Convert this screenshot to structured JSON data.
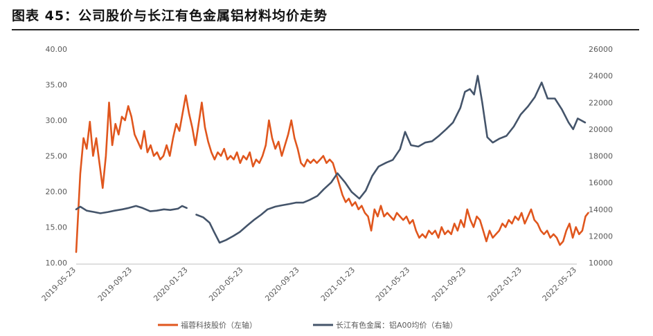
{
  "title": "图表 45：公司股价与长江有色金属铝材料均价走势",
  "chart_data": {
    "type": "line",
    "x_ticks": [
      "2019-05-23",
      "2019-09-23",
      "2020-01-23",
      "2020-05-23",
      "2020-09-23",
      "2021-01-23",
      "2021-05-23",
      "2021-09-23",
      "2022-01-23",
      "2022-05-23"
    ],
    "y_left": {
      "ticks": [
        "10.00",
        "15.00",
        "20.00",
        "25.00",
        "30.00",
        "35.00",
        "40.00"
      ],
      "lim": [
        10,
        40
      ]
    },
    "y_right": {
      "ticks": [
        "10000",
        "12000",
        "14000",
        "16000",
        "18000",
        "20000",
        "22000",
        "24000",
        "26000"
      ],
      "lim": [
        10000,
        26000
      ]
    },
    "legend_position": "bottom",
    "series": [
      {
        "name": "福蓉科技股价（左轴）",
        "axis": "left",
        "color": "#e0561d",
        "points": [
          [
            "2019-05-23",
            11.5
          ],
          [
            "2019-06-01",
            22.5
          ],
          [
            "2019-06-08",
            27.5
          ],
          [
            "2019-06-15",
            26.0
          ],
          [
            "2019-06-22",
            29.8
          ],
          [
            "2019-06-29",
            25.0
          ],
          [
            "2019-07-06",
            27.5
          ],
          [
            "2019-07-13",
            24.0
          ],
          [
            "2019-07-20",
            20.5
          ],
          [
            "2019-07-27",
            25.0
          ],
          [
            "2019-08-03",
            32.5
          ],
          [
            "2019-08-10",
            26.5
          ],
          [
            "2019-08-17",
            29.5
          ],
          [
            "2019-08-24",
            28.0
          ],
          [
            "2019-08-31",
            30.5
          ],
          [
            "2019-09-07",
            30.0
          ],
          [
            "2019-09-14",
            32.0
          ],
          [
            "2019-09-21",
            30.5
          ],
          [
            "2019-09-28",
            28.0
          ],
          [
            "2019-10-05",
            27.0
          ],
          [
            "2019-10-12",
            26.0
          ],
          [
            "2019-10-19",
            28.5
          ],
          [
            "2019-10-26",
            25.5
          ],
          [
            "2019-11-02",
            26.5
          ],
          [
            "2019-11-09",
            25.0
          ],
          [
            "2019-11-16",
            25.5
          ],
          [
            "2019-11-23",
            24.5
          ],
          [
            "2019-11-30",
            25.0
          ],
          [
            "2019-12-07",
            26.5
          ],
          [
            "2019-12-14",
            25.0
          ],
          [
            "2019-12-21",
            27.5
          ],
          [
            "2019-12-28",
            29.5
          ],
          [
            "2020-01-04",
            28.5
          ],
          [
            "2020-01-11",
            31.0
          ],
          [
            "2020-01-18",
            33.5
          ],
          [
            "2020-01-25",
            31.0
          ],
          [
            "2020-02-01",
            29.0
          ],
          [
            "2020-02-08",
            26.5
          ],
          [
            "2020-02-15",
            29.5
          ],
          [
            "2020-02-22",
            32.5
          ],
          [
            "2020-02-29",
            29.0
          ],
          [
            "2020-03-07",
            27.0
          ],
          [
            "2020-03-14",
            25.5
          ],
          [
            "2020-03-21",
            24.5
          ],
          [
            "2020-03-28",
            25.5
          ],
          [
            "2020-04-04",
            25.0
          ],
          [
            "2020-04-11",
            26.0
          ],
          [
            "2020-04-18",
            24.5
          ],
          [
            "2020-04-25",
            25.0
          ],
          [
            "2020-05-02",
            24.5
          ],
          [
            "2020-05-09",
            25.5
          ],
          [
            "2020-05-16",
            24.0
          ],
          [
            "2020-05-23",
            25.0
          ],
          [
            "2020-05-30",
            24.5
          ],
          [
            "2020-06-06",
            25.5
          ],
          [
            "2020-06-13",
            23.5
          ],
          [
            "2020-06-20",
            24.5
          ],
          [
            "2020-06-27",
            24.0
          ],
          [
            "2020-07-04",
            25.0
          ],
          [
            "2020-07-11",
            26.5
          ],
          [
            "2020-07-18",
            30.0
          ],
          [
            "2020-07-25",
            27.5
          ],
          [
            "2020-08-01",
            26.0
          ],
          [
            "2020-08-08",
            27.0
          ],
          [
            "2020-08-15",
            25.0
          ],
          [
            "2020-08-22",
            26.5
          ],
          [
            "2020-08-29",
            28.0
          ],
          [
            "2020-09-05",
            30.0
          ],
          [
            "2020-09-12",
            27.5
          ],
          [
            "2020-09-19",
            26.0
          ],
          [
            "2020-09-26",
            24.0
          ],
          [
            "2020-10-03",
            23.5
          ],
          [
            "2020-10-10",
            24.5
          ],
          [
            "2020-10-17",
            24.0
          ],
          [
            "2020-10-24",
            24.5
          ],
          [
            "2020-10-31",
            24.0
          ],
          [
            "2020-11-07",
            24.5
          ],
          [
            "2020-11-14",
            25.0
          ],
          [
            "2020-11-21",
            24.0
          ],
          [
            "2020-11-28",
            24.5
          ],
          [
            "2020-12-05",
            24.0
          ],
          [
            "2020-12-12",
            22.5
          ],
          [
            "2020-12-19",
            21.0
          ],
          [
            "2020-12-26",
            19.5
          ],
          [
            "2021-01-02",
            18.5
          ],
          [
            "2021-01-09",
            19.0
          ],
          [
            "2021-01-16",
            18.0
          ],
          [
            "2021-01-23",
            18.5
          ],
          [
            "2021-01-30",
            17.5
          ],
          [
            "2021-02-06",
            18.0
          ],
          [
            "2021-02-13",
            17.0
          ],
          [
            "2021-02-20",
            16.5
          ],
          [
            "2021-02-27",
            14.5
          ],
          [
            "2021-03-06",
            17.5
          ],
          [
            "2021-03-13",
            16.5
          ],
          [
            "2021-03-20",
            18.0
          ],
          [
            "2021-03-27",
            16.5
          ],
          [
            "2021-04-03",
            17.0
          ],
          [
            "2021-04-10",
            16.5
          ],
          [
            "2021-04-17",
            16.0
          ],
          [
            "2021-04-24",
            17.0
          ],
          [
            "2021-05-01",
            16.5
          ],
          [
            "2021-05-08",
            16.0
          ],
          [
            "2021-05-15",
            16.5
          ],
          [
            "2021-05-22",
            15.5
          ],
          [
            "2021-05-29",
            16.0
          ],
          [
            "2021-06-05",
            14.5
          ],
          [
            "2021-06-12",
            13.5
          ],
          [
            "2021-06-19",
            14.0
          ],
          [
            "2021-06-26",
            13.5
          ],
          [
            "2021-07-03",
            14.5
          ],
          [
            "2021-07-10",
            14.0
          ],
          [
            "2021-07-17",
            14.5
          ],
          [
            "2021-07-24",
            13.5
          ],
          [
            "2021-07-31",
            15.0
          ],
          [
            "2021-08-07",
            14.0
          ],
          [
            "2021-08-14",
            14.5
          ],
          [
            "2021-08-21",
            14.0
          ],
          [
            "2021-08-28",
            15.5
          ],
          [
            "2021-09-04",
            14.5
          ],
          [
            "2021-09-11",
            16.0
          ],
          [
            "2021-09-18",
            15.0
          ],
          [
            "2021-09-25",
            17.5
          ],
          [
            "2021-10-02",
            16.0
          ],
          [
            "2021-10-09",
            15.0
          ],
          [
            "2021-10-16",
            16.5
          ],
          [
            "2021-10-23",
            16.0
          ],
          [
            "2021-10-30",
            14.5
          ],
          [
            "2021-11-06",
            13.0
          ],
          [
            "2021-11-13",
            14.5
          ],
          [
            "2021-11-20",
            13.5
          ],
          [
            "2021-11-27",
            14.0
          ],
          [
            "2021-12-04",
            14.5
          ],
          [
            "2021-12-11",
            15.5
          ],
          [
            "2021-12-18",
            15.0
          ],
          [
            "2021-12-25",
            16.0
          ],
          [
            "2022-01-01",
            15.5
          ],
          [
            "2022-01-08",
            16.5
          ],
          [
            "2022-01-15",
            16.0
          ],
          [
            "2022-01-22",
            17.0
          ],
          [
            "2022-01-29",
            15.5
          ],
          [
            "2022-02-05",
            16.5
          ],
          [
            "2022-02-12",
            17.5
          ],
          [
            "2022-02-19",
            16.0
          ],
          [
            "2022-02-26",
            15.5
          ],
          [
            "2022-03-05",
            14.5
          ],
          [
            "2022-03-12",
            14.0
          ],
          [
            "2022-03-19",
            14.5
          ],
          [
            "2022-03-26",
            13.5
          ],
          [
            "2022-04-02",
            14.0
          ],
          [
            "2022-04-09",
            13.5
          ],
          [
            "2022-04-16",
            12.5
          ],
          [
            "2022-04-23",
            13.0
          ],
          [
            "2022-04-30",
            14.5
          ],
          [
            "2022-05-07",
            15.5
          ],
          [
            "2022-05-14",
            13.5
          ],
          [
            "2022-05-21",
            15.0
          ],
          [
            "2022-05-28",
            14.0
          ],
          [
            "2022-06-04",
            14.5
          ],
          [
            "2022-06-11",
            16.5
          ],
          [
            "2022-06-17",
            17.0
          ]
        ]
      },
      {
        "name": "长江有色金属：铝A00均价（右轴）",
        "axis": "right",
        "color": "#44546a",
        "points": [
          [
            "2019-05-23",
            14000
          ],
          [
            "2019-06-01",
            14200
          ],
          [
            "2019-06-15",
            13900
          ],
          [
            "2019-07-01",
            13800
          ],
          [
            "2019-07-15",
            13700
          ],
          [
            "2019-08-01",
            13800
          ],
          [
            "2019-08-15",
            13900
          ],
          [
            "2019-09-01",
            14000
          ],
          [
            "2019-09-15",
            14100
          ],
          [
            "2019-10-01",
            14250
          ],
          [
            "2019-10-15",
            14100
          ],
          [
            "2019-11-01",
            13850
          ],
          [
            "2019-11-15",
            13900
          ],
          [
            "2019-12-01",
            14000
          ],
          [
            "2019-12-15",
            13950
          ],
          [
            "2020-01-01",
            14050
          ],
          [
            "2020-01-10",
            14250
          ],
          [
            "2020-01-20",
            14100
          ],
          [
            "2020-01-23",
            null
          ],
          [
            "2020-02-10",
            13600
          ],
          [
            "2020-02-25",
            13400
          ],
          [
            "2020-03-10",
            13000
          ],
          [
            "2020-03-20",
            12300
          ],
          [
            "2020-04-01",
            11500
          ],
          [
            "2020-04-15",
            11700
          ],
          [
            "2020-05-01",
            12000
          ],
          [
            "2020-05-15",
            12300
          ],
          [
            "2020-06-01",
            12800
          ],
          [
            "2020-06-15",
            13200
          ],
          [
            "2020-07-01",
            13600
          ],
          [
            "2020-07-15",
            14000
          ],
          [
            "2020-08-01",
            14200
          ],
          [
            "2020-08-15",
            14300
          ],
          [
            "2020-09-01",
            14400
          ],
          [
            "2020-09-15",
            14500
          ],
          [
            "2020-10-01",
            14500
          ],
          [
            "2020-10-15",
            14700
          ],
          [
            "2020-11-01",
            15000
          ],
          [
            "2020-11-15",
            15500
          ],
          [
            "2020-12-01",
            16000
          ],
          [
            "2020-12-15",
            16700
          ],
          [
            "2021-01-01",
            16000
          ],
          [
            "2021-01-15",
            15300
          ],
          [
            "2021-02-01",
            14800
          ],
          [
            "2021-02-15",
            15400
          ],
          [
            "2021-03-01",
            16500
          ],
          [
            "2021-03-15",
            17200
          ],
          [
            "2021-04-01",
            17500
          ],
          [
            "2021-04-15",
            17700
          ],
          [
            "2021-05-01",
            18500
          ],
          [
            "2021-05-12",
            19800
          ],
          [
            "2021-05-25",
            18800
          ],
          [
            "2021-06-10",
            18700
          ],
          [
            "2021-06-25",
            19000
          ],
          [
            "2021-07-10",
            19100
          ],
          [
            "2021-07-25",
            19500
          ],
          [
            "2021-08-10",
            20000
          ],
          [
            "2021-08-25",
            20500
          ],
          [
            "2021-09-10",
            21600
          ],
          [
            "2021-09-20",
            22800
          ],
          [
            "2021-10-01",
            23000
          ],
          [
            "2021-10-10",
            22600
          ],
          [
            "2021-10-18",
            24000
          ],
          [
            "2021-10-28",
            22000
          ],
          [
            "2021-11-08",
            19400
          ],
          [
            "2021-11-20",
            19000
          ],
          [
            "2021-12-05",
            19300
          ],
          [
            "2021-12-20",
            19500
          ],
          [
            "2022-01-05",
            20200
          ],
          [
            "2022-01-20",
            21100
          ],
          [
            "2022-02-05",
            21700
          ],
          [
            "2022-02-20",
            22400
          ],
          [
            "2022-03-07",
            23500
          ],
          [
            "2022-03-20",
            22300
          ],
          [
            "2022-04-05",
            22300
          ],
          [
            "2022-04-20",
            21500
          ],
          [
            "2022-05-05",
            20500
          ],
          [
            "2022-05-15",
            20000
          ],
          [
            "2022-05-25",
            20800
          ],
          [
            "2022-06-10",
            20500
          ]
        ]
      }
    ]
  }
}
